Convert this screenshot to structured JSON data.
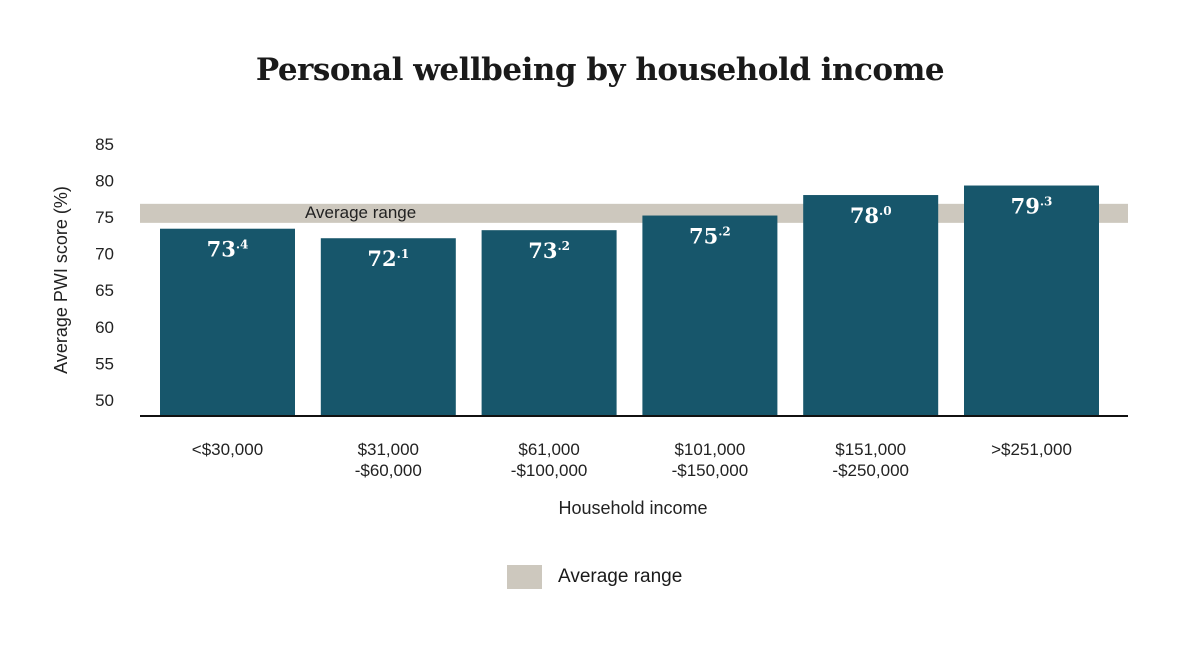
{
  "chart_data": {
    "type": "bar",
    "title": "Personal wellbeing by household income",
    "xlabel": "Household income",
    "ylabel": "Average PWI score (%)",
    "ylim": [
      50,
      85
    ],
    "yticks": [
      85,
      80,
      75,
      70,
      65,
      60,
      55,
      50
    ],
    "categories": [
      [
        "<$30,000"
      ],
      [
        "$31,000",
        "-$60,000"
      ],
      [
        "$61,000",
        "-$100,000"
      ],
      [
        "$101,000",
        "-$150,000"
      ],
      [
        "$151,000",
        "-$250,000"
      ],
      [
        ">$251,000"
      ]
    ],
    "values": [
      73.4,
      72.1,
      73.2,
      75.2,
      78.0,
      79.3
    ],
    "value_labels": [
      [
        "73",
        ".4"
      ],
      [
        "72",
        ".1"
      ],
      [
        "73",
        ".2"
      ],
      [
        "75",
        ".2"
      ],
      [
        "78",
        ".0"
      ],
      [
        "79",
        ".3"
      ]
    ],
    "average_range": {
      "label": "Average range",
      "low": 74.2,
      "high": 76.8
    },
    "legend": {
      "entries": [
        "Average range"
      ],
      "placement": "bottom"
    },
    "grid": false,
    "colors": {
      "bar": "#17566b",
      "band": "#cdc8be"
    }
  }
}
